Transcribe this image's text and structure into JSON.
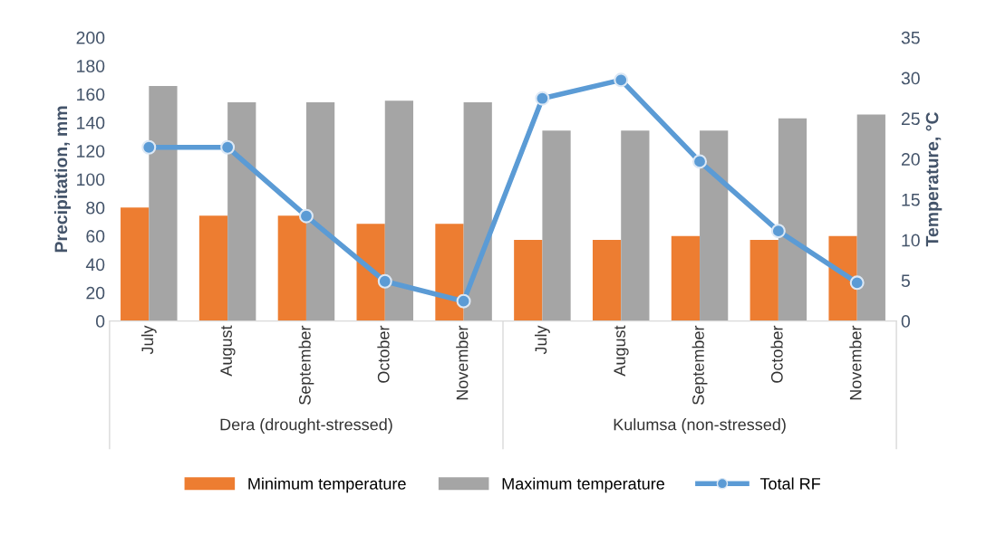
{
  "chart_data": {
    "type": "bar",
    "categories": [
      "July",
      "August",
      "September",
      "October",
      "November",
      "July",
      "August",
      "September",
      "October",
      "November"
    ],
    "series": [
      {
        "name": "Minimum temperature",
        "axis": "y2",
        "color": "#ed7d31",
        "values": [
          14,
          13,
          13,
          12,
          12,
          10,
          10,
          10.5,
          10,
          10.5
        ]
      },
      {
        "name": "Maximum temperature",
        "axis": "y2",
        "color": "#a5a5a5",
        "values": [
          29,
          27,
          27,
          27.2,
          27,
          23.5,
          23.5,
          23.5,
          25,
          25.5
        ]
      },
      {
        "name": "Total RF",
        "type": "line",
        "color": "#5b9bd5",
        "values": [
          122.5,
          122.5,
          74,
          28,
          14,
          157,
          170,
          112.5,
          63.5,
          27
        ]
      }
    ],
    "ylabel": "Precipitation, mm",
    "y2label": "Temperature, °C",
    "ylim": [
      0,
      200
    ],
    "yticks": [
      0,
      20,
      40,
      60,
      80,
      100,
      120,
      140,
      160,
      180,
      200
    ],
    "y2lim": [
      0,
      35
    ],
    "y2ticks": [
      0,
      5,
      10,
      15,
      20,
      25,
      30,
      35
    ],
    "annotations": [
      "Dera (drought-stressed)",
      "Kulumsa (non-stressed)"
    ],
    "marker": "circle",
    "line_style": "solid",
    "grid": false,
    "legend": "bottom"
  }
}
